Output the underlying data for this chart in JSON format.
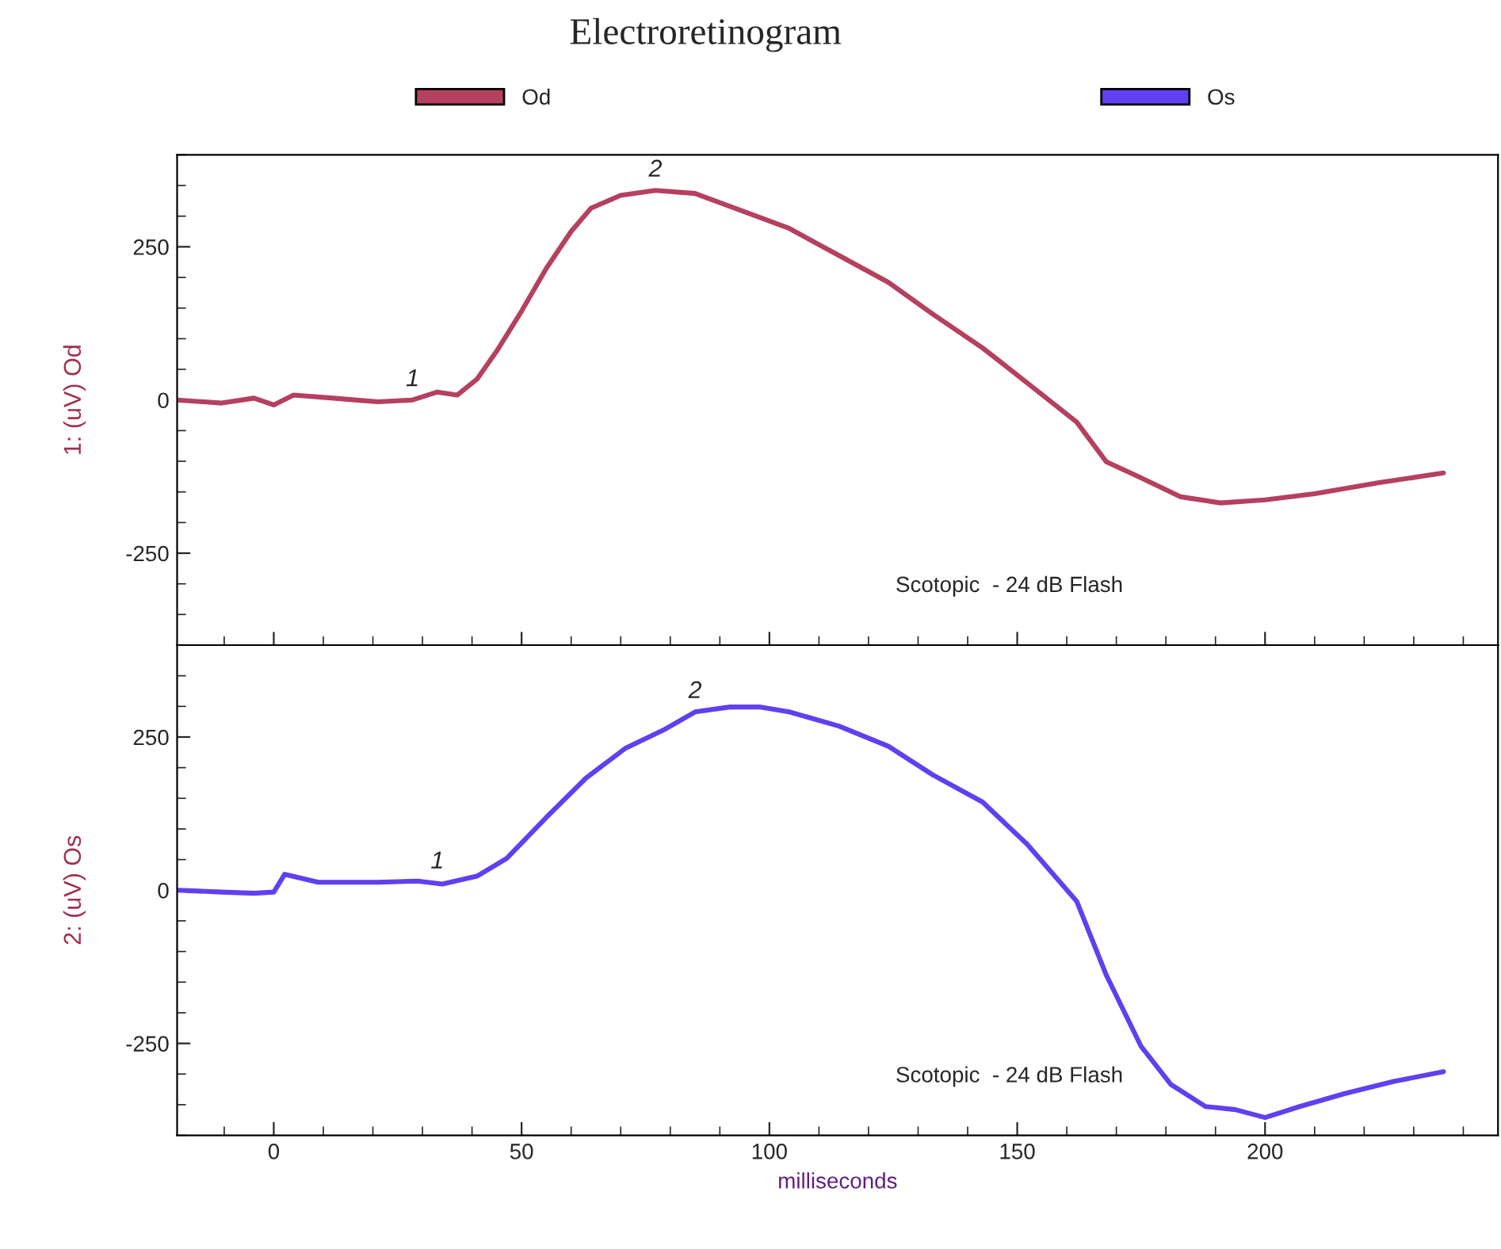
{
  "chart_data": [
    {
      "type": "line",
      "title": "Electroretinogram",
      "ylabel": "1: (uV) Od",
      "legend": "top",
      "tick_labels": "y",
      "grid": false,
      "xlim": [
        -19.5,
        247
      ],
      "ylim": [
        -400,
        400
      ],
      "yticks": [
        -250,
        0,
        250
      ],
      "series": [
        {
          "name": "Od",
          "color": "#b5405f",
          "x": [
            -19.5,
            -10.5,
            -4,
            0,
            4,
            12,
            21,
            28,
            33,
            37,
            41,
            45,
            50,
            55,
            60,
            64,
            70,
            77,
            85,
            93,
            104,
            114,
            124,
            133,
            143,
            152,
            162,
            168,
            175,
            183,
            191,
            200,
            210,
            223,
            236
          ],
          "values": [
            0,
            -5,
            3,
            -8,
            8,
            3,
            -3,
            0,
            13,
            8,
            34,
            80,
            145,
            215,
            275,
            313,
            334,
            342,
            337,
            313,
            280,
            236,
            192,
            140,
            85,
            28,
            -36,
            -101,
            -127,
            -158,
            -168,
            -163,
            -153,
            -135,
            -119
          ]
        }
      ],
      "annotations": [
        {
          "text": "1",
          "x": 28,
          "y": 0
        },
        {
          "text": "2",
          "x": 77,
          "y": 342
        },
        "Scotopic  - 24 dB Flash"
      ]
    },
    {
      "type": "line",
      "ylabel": "2: (uV) Os",
      "xlabel": "milliseconds",
      "legend": "top",
      "grid": false,
      "xlim": [
        -19.5,
        247
      ],
      "xticks": [
        0,
        50,
        100,
        150,
        200
      ],
      "ylim": [
        -400,
        400
      ],
      "yticks": [
        -250,
        0,
        250
      ],
      "series": [
        {
          "name": "Os",
          "color": "#6040f0",
          "x": [
            -19.5,
            -10.5,
            -4,
            0,
            2.2,
            9,
            21,
            29,
            34,
            41,
            47,
            55,
            63,
            71,
            79,
            85,
            92,
            98,
            104,
            114,
            124,
            133,
            143,
            152,
            162,
            168,
            175,
            181,
            188,
            194,
            200,
            207,
            216,
            226,
            236
          ],
          "values": [
            0,
            -3,
            -5,
            -3,
            26,
            13,
            13,
            15,
            10,
            23,
            52,
            119,
            183,
            232,
            263,
            291,
            299,
            299,
            291,
            268,
            235,
            188,
            144,
            75,
            -18,
            -139,
            -255,
            -317,
            -353,
            -358,
            -371,
            -353,
            -332,
            -312,
            -296
          ]
        }
      ],
      "annotations": [
        {
          "text": "1",
          "x": 33,
          "y": 13
        },
        {
          "text": "2",
          "x": 85,
          "y": 291
        },
        "Scotopic  - 24 dB Flash"
      ]
    }
  ]
}
